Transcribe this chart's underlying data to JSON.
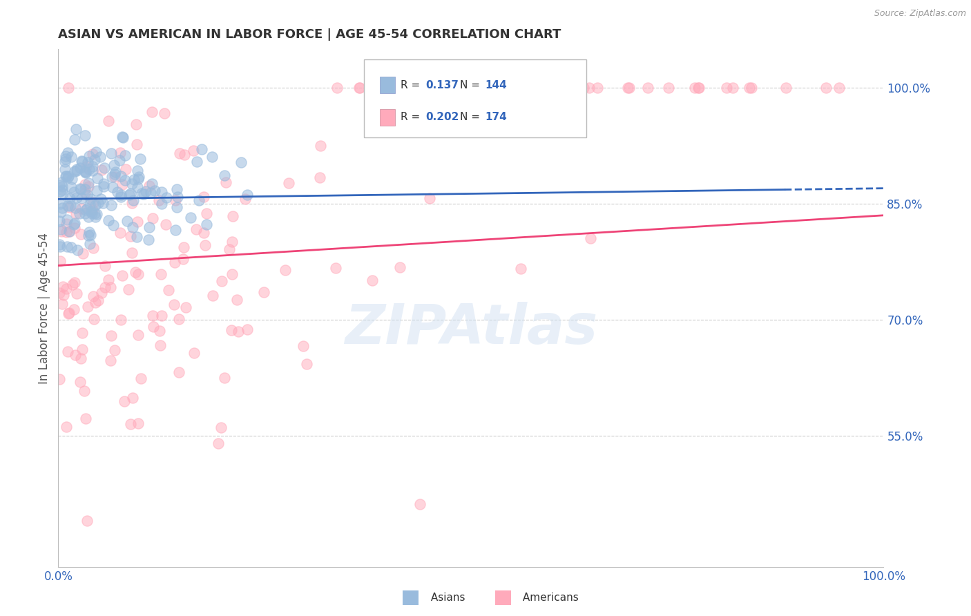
{
  "title": "ASIAN VS AMERICAN IN LABOR FORCE | AGE 45-54 CORRELATION CHART",
  "source": "Source: ZipAtlas.com",
  "ylabel": "In Labor Force | Age 45-54",
  "xlim": [
    0.0,
    1.0
  ],
  "ylim": [
    0.38,
    1.05
  ],
  "yticks": [
    0.55,
    0.7,
    0.85,
    1.0
  ],
  "ytick_labels": [
    "55.0%",
    "70.0%",
    "85.0%",
    "100.0%"
  ],
  "xticks": [
    0.0,
    1.0
  ],
  "xtick_labels": [
    "0.0%",
    "100.0%"
  ],
  "blue_R": 0.137,
  "blue_N": 144,
  "pink_R": 0.202,
  "pink_N": 174,
  "blue_color": "#99BBDD",
  "pink_color": "#FFAABB",
  "blue_line_color": "#3366BB",
  "pink_line_color": "#EE4477",
  "legend_blue_R_val": "0.137",
  "legend_blue_N_val": "144",
  "legend_pink_R_val": "0.202",
  "legend_pink_N_val": "174",
  "watermark": "ZIPAtlas",
  "background_color": "#FFFFFF",
  "grid_color": "#CCCCCC",
  "title_color": "#333333",
  "axis_label_color": "#555555",
  "tick_label_color": "#3366BB",
  "legend_text_color": "#333333",
  "seed_blue": 7,
  "seed_pink": 99
}
